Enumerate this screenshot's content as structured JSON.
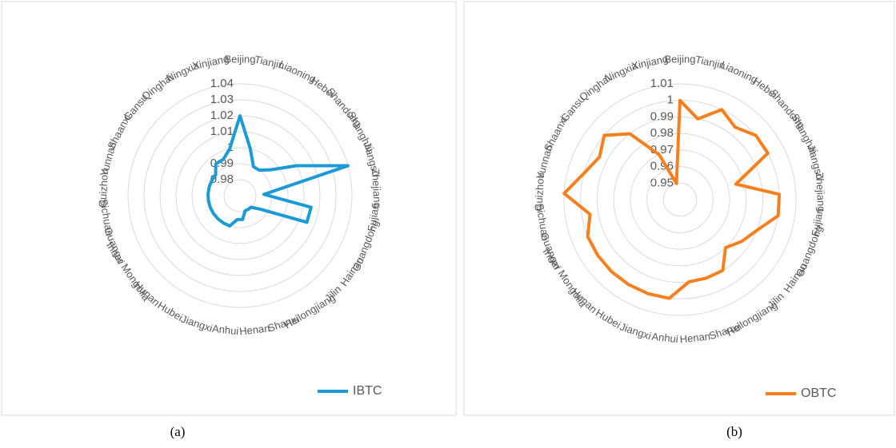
{
  "chart_data": [
    {
      "type": "radar",
      "caption": "(a)",
      "categories": [
        "Beijing",
        "Tianjin",
        "Liaoning",
        "Hebei",
        "Shandong",
        "Shanghai",
        "Jiangsu",
        "Zhejiang",
        "Fujian",
        "Guangdong",
        "Hainan",
        "Jilin",
        "Heilongjiang",
        "Shanxi",
        "Henan",
        "Anhui",
        "Jiangxi",
        "Hubei",
        "Hunan",
        "Inner Mongolia",
        "Guangxi",
        "Sichuan",
        "Guizhou",
        "Yunnan",
        "Shaanxi",
        "Gansu",
        "Qinghai",
        "Ningxia",
        "Xinjiang"
      ],
      "series": [
        {
          "name": "IBTC",
          "color": "#1b9ad6",
          "values": [
            1.02,
            1.0,
            0.99,
            0.99,
            0.995,
            1.01,
            1.04,
            0.985,
            1.015,
            1.015,
            0.985,
            0.98,
            0.98,
            0.98,
            0.985,
            0.985,
            0.99,
            0.99,
            0.99,
            0.99,
            0.99,
            0.99,
            0.99,
            0.99,
            0.99,
            0.99,
            0.995,
            0.995,
            1.0
          ]
        }
      ],
      "rlim": [
        0.97,
        1.04
      ],
      "rticks": [
        0.98,
        0.99,
        1,
        1.01,
        1.02,
        1.03,
        1.04
      ],
      "legend": "bottom-right"
    },
    {
      "type": "radar",
      "caption": "(b)",
      "categories": [
        "Beijing",
        "Tianjin",
        "Liaoning",
        "Hebei",
        "Shandong",
        "Shanghai",
        "Jiangsu",
        "Zhejiang",
        "Fujian",
        "Guangdong",
        "Hainan",
        "Jilin",
        "Heilongjiang",
        "Shanxi",
        "Henan",
        "Anhui",
        "Jiangxi",
        "Hubei",
        "Hunan",
        "Inner Mongolia",
        "Guangxi",
        "Sichuan",
        "Guizhou",
        "Yunnan",
        "Shaanxi",
        "Gansu",
        "Qinghai",
        "Ningxia",
        "Xinjiang"
      ],
      "series": [
        {
          "name": "OBTC",
          "color": "#f77f1e",
          "values": [
            1.0,
            0.99,
            1.0,
            0.995,
            1.0,
            1.0,
            0.975,
            1.0,
            1.0,
            0.99,
            0.985,
            0.98,
            0.99,
            0.99,
            0.99,
            1.0,
            1.0,
            1.0,
            1.0,
            1.0,
            1.0,
            0.995,
            1.01,
            1.0,
            0.995,
            1.0,
            0.99,
            0.97,
            0.95
          ]
        }
      ],
      "rlim": [
        0.94,
        1.01
      ],
      "rticks": [
        0.95,
        0.96,
        0.97,
        0.98,
        0.99,
        1,
        1.01
      ],
      "legend": "bottom-right"
    }
  ]
}
